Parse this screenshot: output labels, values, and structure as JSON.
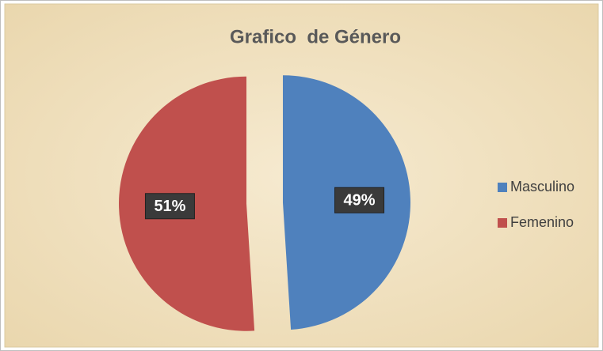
{
  "chart_data": {
    "type": "pie",
    "title": "Grafico  de Género",
    "categories": [
      "Masculino",
      "Femenino"
    ],
    "values": [
      49,
      51
    ],
    "value_labels": [
      "49%",
      "51%"
    ],
    "colors": [
      "#4f81bd",
      "#c0504d"
    ],
    "legend": "right"
  }
}
